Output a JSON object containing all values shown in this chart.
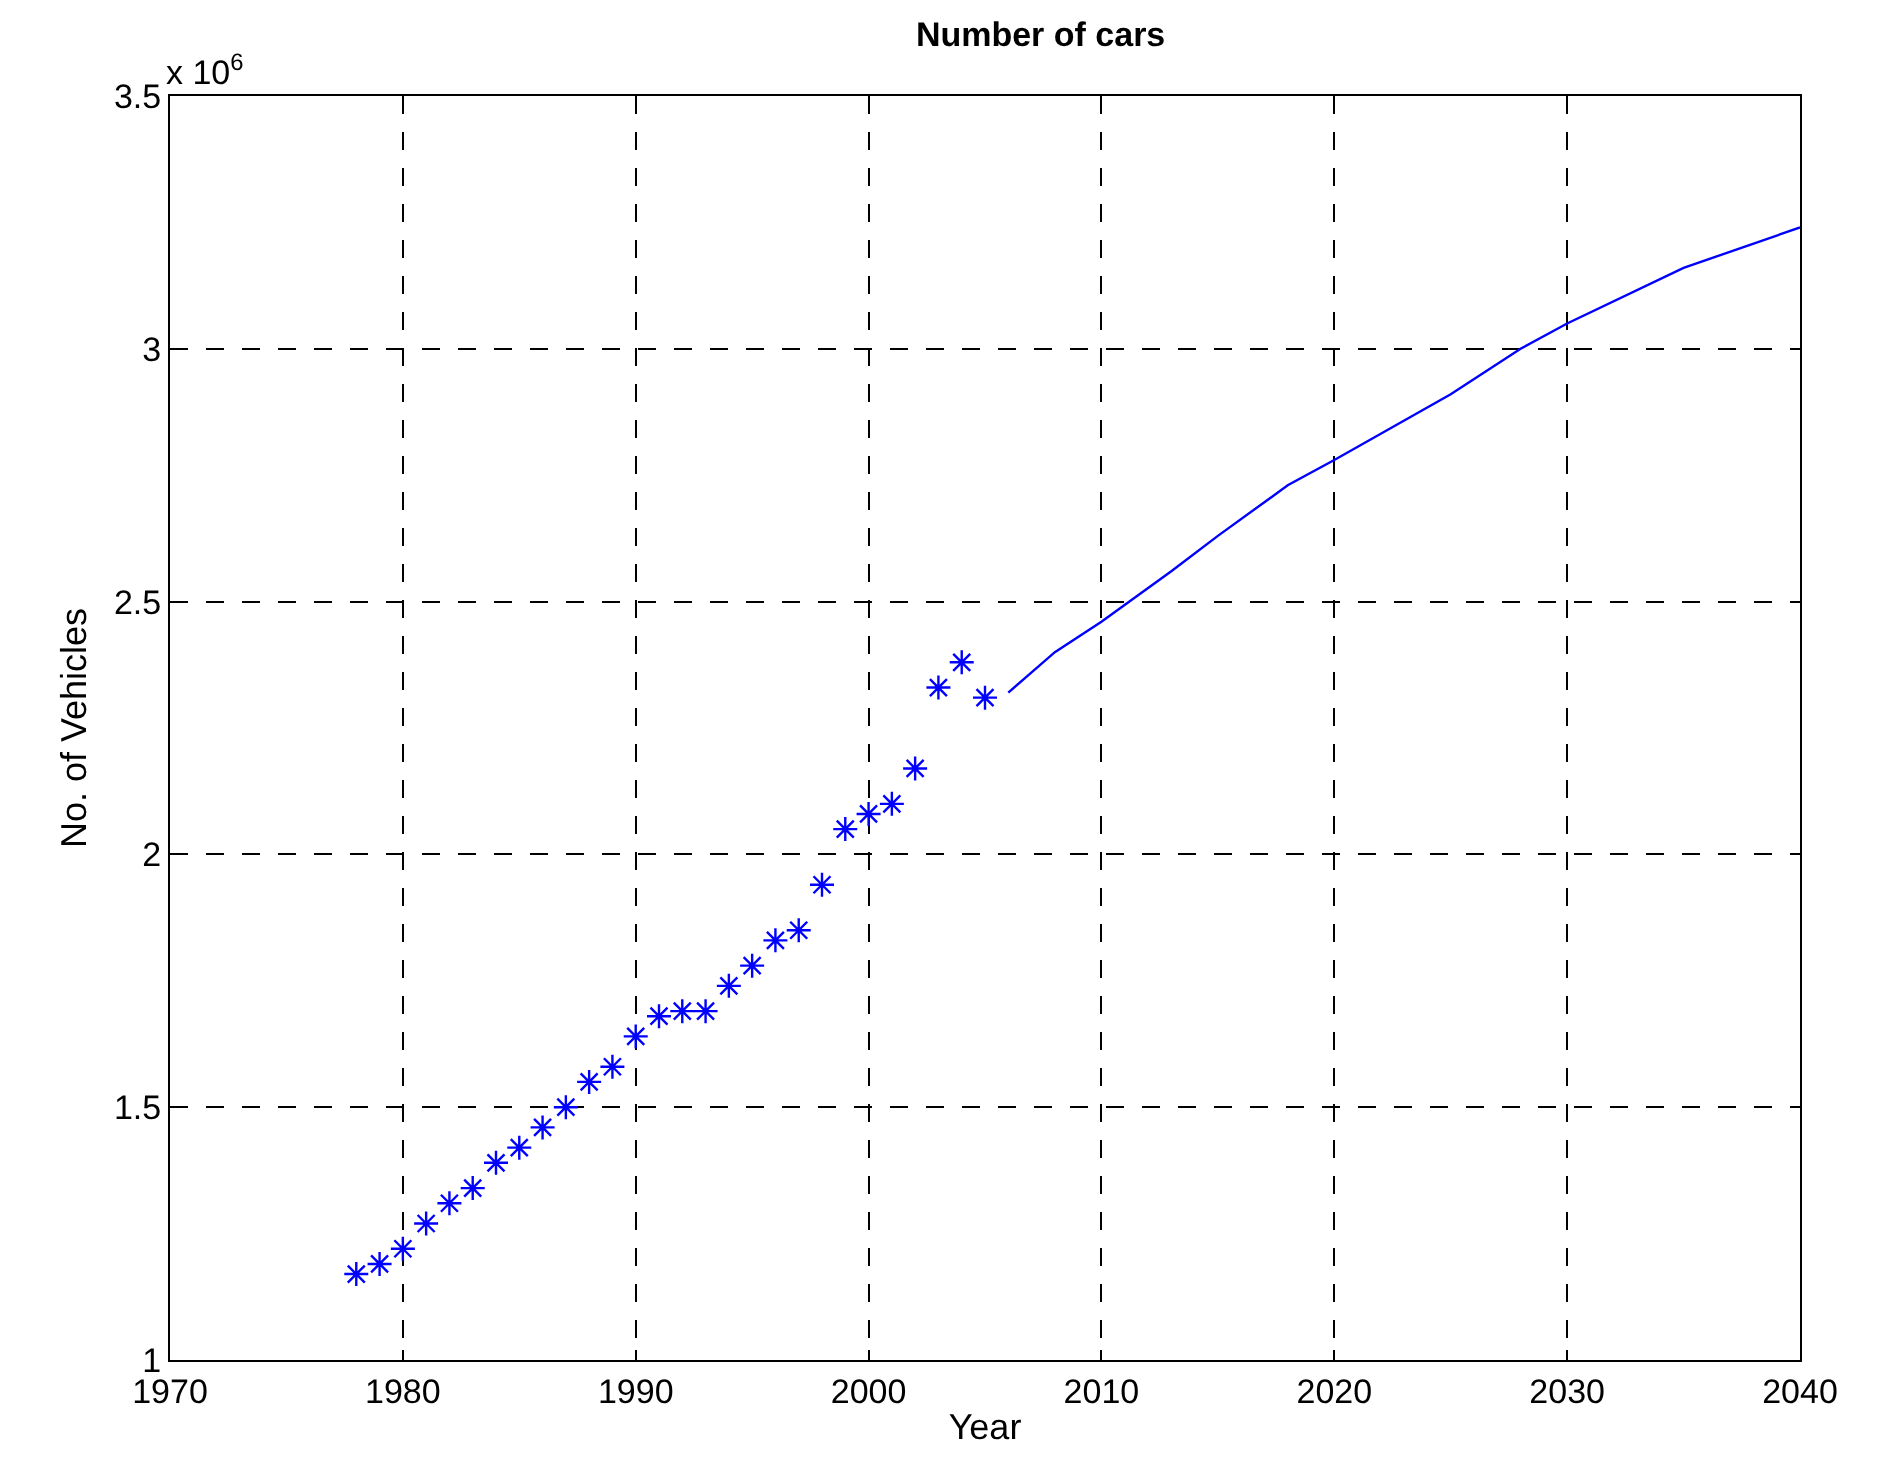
{
  "chart_data": {
    "type": "scatter",
    "title": "Number of cars",
    "xlabel": "Year",
    "ylabel": "No. of Vehicles",
    "annotations": [
      "x 10$^{6}$"
    ],
    "series": [
      {
        "marker": "cross",
        "color": "#0000ff",
        "x": [
          1978,
          1979,
          1980,
          1981,
          1982,
          1983,
          1984,
          1985,
          1986,
          1987,
          1988,
          1989,
          1990,
          1991,
          1992,
          1993,
          1994,
          1995,
          1996,
          1997,
          1998,
          1999,
          2000,
          2001,
          2002,
          2003,
          2004,
          2005
        ],
        "values": [
          1.17,
          1.19,
          1.22,
          1.27,
          1.31,
          1.34,
          1.39,
          1.42,
          1.46,
          1.5,
          1.55,
          1.58,
          1.64,
          1.68,
          1.69,
          1.69,
          1.74,
          1.78,
          1.83,
          1.85,
          1.94,
          2.05,
          2.08,
          2.1,
          2.17,
          2.33,
          2.38,
          2.31
        ]
      },
      {
        "type": "line",
        "line_style": "solid",
        "color": "#0000ff",
        "x": [
          2006,
          2007,
          2008,
          2010,
          2013,
          2015,
          2018,
          2020,
          2025,
          2028,
          2030,
          2035,
          2040
        ],
        "values": [
          2.32,
          2.36,
          2.4,
          2.46,
          2.56,
          2.63,
          2.73,
          2.78,
          2.91,
          3.0,
          3.05,
          3.16,
          3.24
        ]
      }
    ],
    "xlim": [
      1970,
      2040
    ],
    "xticks": [
      1970,
      1980,
      1990,
      2000,
      2010,
      2020,
      2030,
      2040
    ],
    "ylim": [
      1,
      3.5
    ],
    "yticks": [
      1,
      1.5,
      2,
      2.5,
      3,
      3.5
    ],
    "grid": true,
    "legend": false
  }
}
